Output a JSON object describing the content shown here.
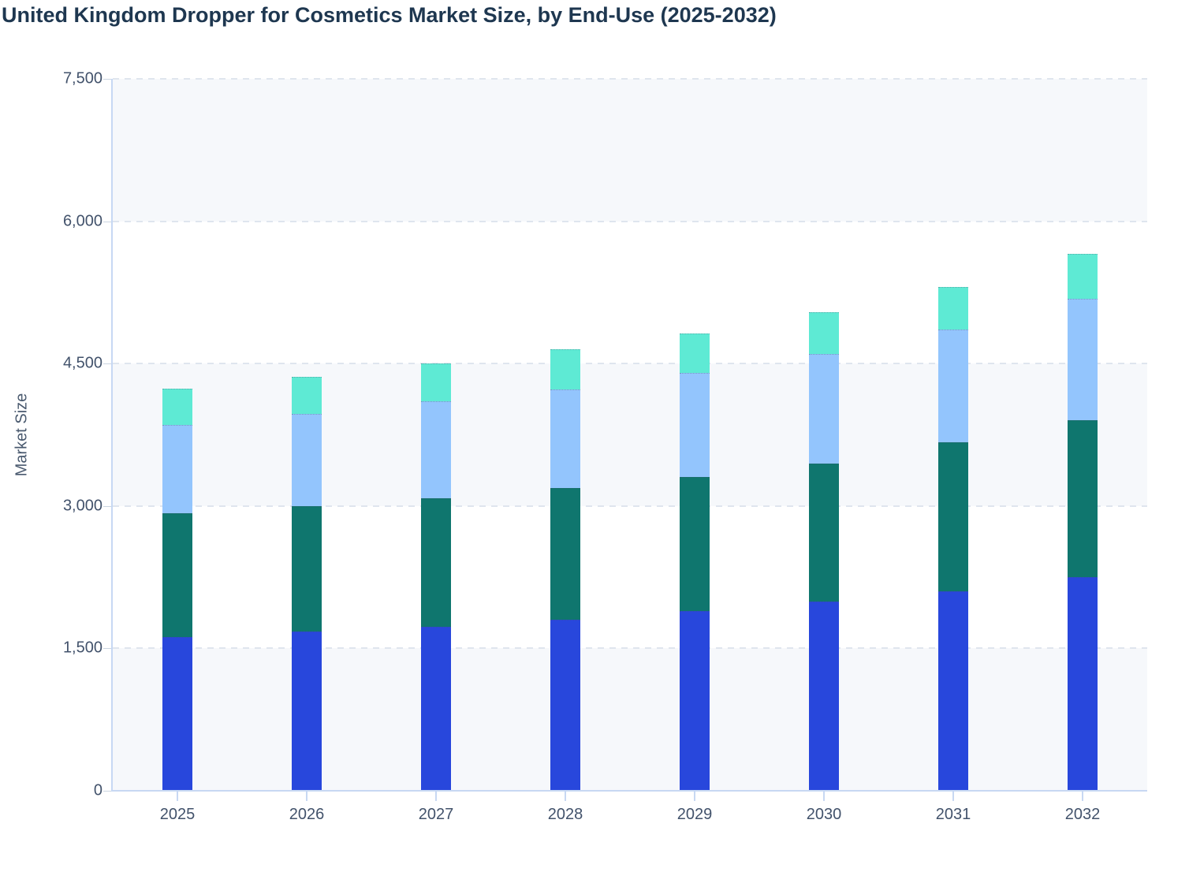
{
  "page": {
    "title": "United Kingdom Dropper for Cosmetics Market Size, by End-Use (2025-2032)"
  },
  "chart_data": {
    "type": "bar",
    "stacked": true,
    "title": "United Kingdom Dropper for Cosmetics Market Size, by End-Use (2025-2032)",
    "xlabel": "",
    "ylabel": "Market Size",
    "categories": [
      "2025",
      "2026",
      "2027",
      "2028",
      "2029",
      "2030",
      "2031",
      "2032"
    ],
    "series": [
      {
        "name": "blue-bottom-segment",
        "color": "#2847dc",
        "values": [
          1620,
          1680,
          1730,
          1800,
          1890,
          1990,
          2100,
          2250
        ]
      },
      {
        "name": "teal-segment",
        "color": "#0f766e",
        "values": [
          1300,
          1320,
          1350,
          1390,
          1420,
          1460,
          1570,
          1650
        ]
      },
      {
        "name": "light-blue-segment",
        "color": "#93c5fd",
        "values": [
          930,
          970,
          1020,
          1040,
          1090,
          1150,
          1190,
          1280
        ]
      },
      {
        "name": "mint-top-segment",
        "color": "#5eead4",
        "values": [
          390,
          390,
          400,
          420,
          420,
          440,
          450,
          480
        ]
      }
    ],
    "stack_totals": [
      4240,
      4360,
      4500,
      4650,
      4820,
      5040,
      5310,
      5660
    ],
    "ylim": [
      0,
      7500
    ],
    "yticks": [
      0,
      1500,
      3000,
      4500,
      6000,
      7500
    ],
    "ytick_labels": [
      "0",
      "1,500",
      "3,000",
      "4,500",
      "6,000",
      "7,500"
    ],
    "grid": "horizontal-dashed",
    "legend": "none",
    "plot_band_colors": [
      "#f6f8fb",
      "#ffffff"
    ],
    "axis_line_color": "#c7d8f3",
    "gridline_color": "#dfe5ee",
    "tick_label_color": "#42526b",
    "title_color": "#1e3750"
  }
}
